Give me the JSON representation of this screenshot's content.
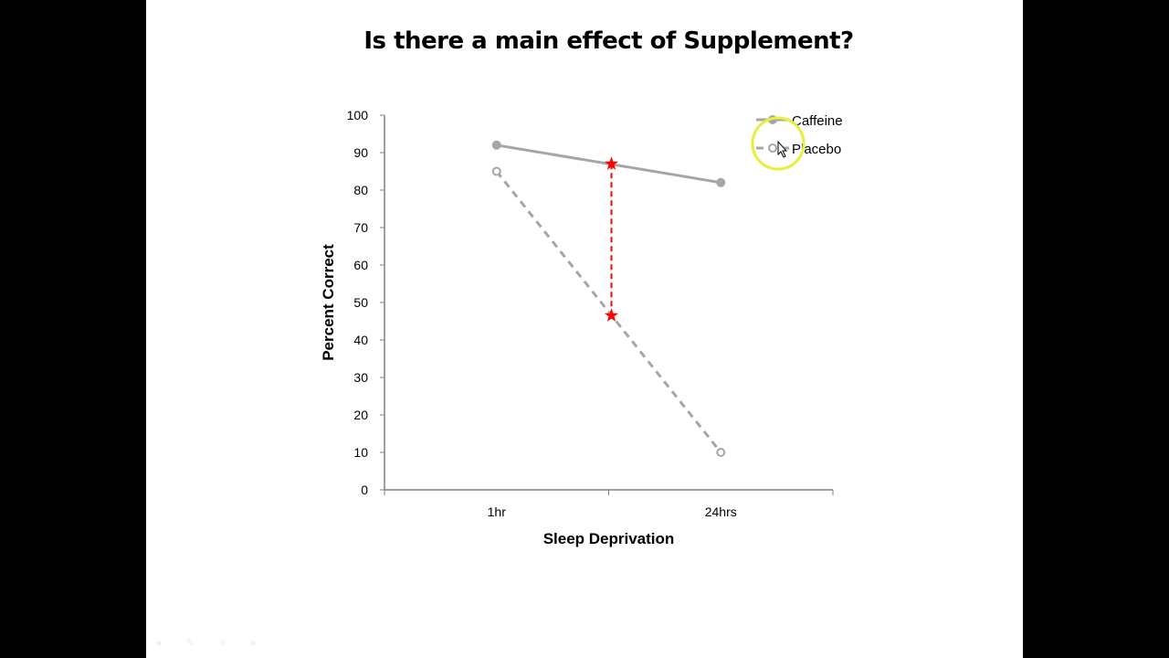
{
  "chart_data": {
    "type": "line",
    "title": "Is there a main effect of Supplement?",
    "xlabel": "Sleep Deprivation",
    "ylabel": "Percent Correct",
    "categories": [
      "1hr",
      "24hrs"
    ],
    "ylim": [
      0,
      100
    ],
    "yticks": [
      0,
      10,
      20,
      30,
      40,
      50,
      60,
      70,
      80,
      90,
      100
    ],
    "grid": false,
    "legend": "top-right",
    "series": [
      {
        "name": "Caffeine",
        "values": [
          92,
          82
        ],
        "color": "#a6a6a6",
        "style": "solid",
        "marker": "filled-circle"
      },
      {
        "name": "Placebo",
        "values": [
          85,
          10
        ],
        "color": "#a6a6a6",
        "style": "dashed",
        "marker": "open-circle"
      }
    ],
    "annotations": [
      {
        "type": "dashed-line-with-stars",
        "color": "#ff0000",
        "from": 87,
        "to": 46.5,
        "position": "between 1hr and 24hrs"
      }
    ]
  },
  "highlight_color": "#e6ef3c"
}
